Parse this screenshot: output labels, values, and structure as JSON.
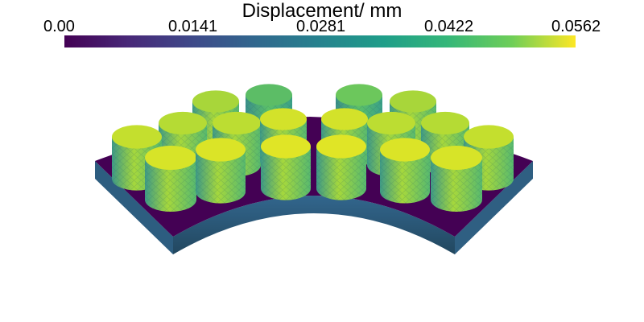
{
  "legend": {
    "title": "Displacement/ mm",
    "ticks": [
      "0.00",
      "0.0141",
      "0.0281",
      "0.0422",
      "0.0562"
    ],
    "range": [
      0.0,
      0.0562
    ],
    "colormap": [
      "#440154",
      "#482878",
      "#3e4989",
      "#31688e",
      "#26828e",
      "#1f9e89",
      "#35b779",
      "#6ece58",
      "#fde725"
    ]
  },
  "model": {
    "base_color": "#440154",
    "base_side_color": "#2a5d7a",
    "pillar_count": 18
  }
}
